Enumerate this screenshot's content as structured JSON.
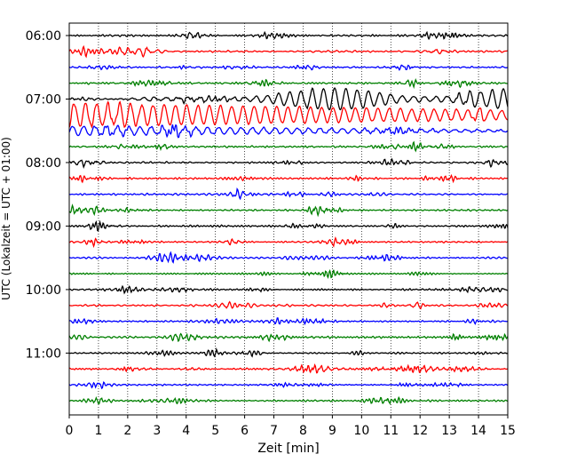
{
  "chart_data": {
    "type": "line",
    "title": "",
    "xlabel": "Zeit  [min]",
    "ylabel": "UTC (Lokalzeit = UTC + 01:00)",
    "xlim": [
      0,
      15
    ],
    "x_ticks": [
      "0",
      "1",
      "2",
      "3",
      "4",
      "5",
      "6",
      "7",
      "8",
      "9",
      "10",
      "11",
      "12",
      "13",
      "14",
      "15"
    ],
    "y_ticks": [
      "06:00",
      "07:00",
      "08:00",
      "09:00",
      "10:00",
      "11:00"
    ],
    "y_tick_rows": [
      0,
      4,
      8,
      12,
      16,
      20
    ],
    "grid": "vertical-dotted",
    "row_count": 24,
    "row_minutes": 15,
    "start_time": "06:00",
    "colors": [
      "#000000",
      "#ff0000",
      "#0000ff",
      "#008000"
    ],
    "event": {
      "description": "large-amplitude oscillation",
      "rows": [
        {
          "row": 4,
          "from_min": 1.5,
          "peak_amplitude": 1.0,
          "rising": true
        },
        {
          "row": 5,
          "from_min": 0,
          "peak_amplitude": 1.0,
          "decay_to": 0.4
        },
        {
          "row": 6,
          "from_min": 0,
          "peak_amplitude": 0.4,
          "decay_to": 0.2
        }
      ]
    }
  }
}
